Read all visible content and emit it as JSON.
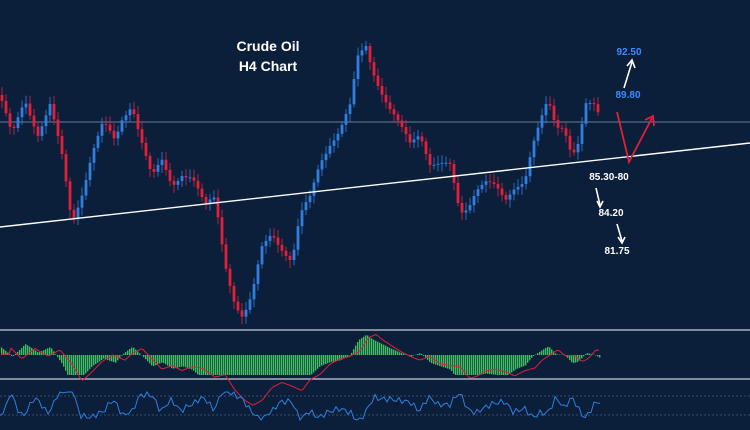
{
  "chart_data": {
    "type": "candlestick",
    "title": "Crude Oil",
    "subtitle": "H4 Chart",
    "colors": {
      "background": "#0b1e3a",
      "bull": "#2f7fe0",
      "bear": "#e0213a",
      "trendline": "#ffffff",
      "level_line": "#8aa0b8",
      "target_up": "#3b8cff",
      "target_down": "#ffffff",
      "projection": "#e0213a",
      "macd_hist": "#3fbf60",
      "macd_signal": "#e0213a",
      "rsi_line": "#2f7fe0",
      "panel_border": "#c8d0da"
    },
    "targets_up": [
      {
        "label": "92.50",
        "color": "#3b8cff"
      },
      {
        "label": "89.80",
        "color": "#3b8cff"
      }
    ],
    "targets_down": [
      {
        "label": "85.30-80",
        "color": "#ffffff"
      },
      {
        "label": "84.20",
        "color": "#ffffff"
      },
      {
        "label": "81.75",
        "color": "#ffffff"
      }
    ]
  }
}
